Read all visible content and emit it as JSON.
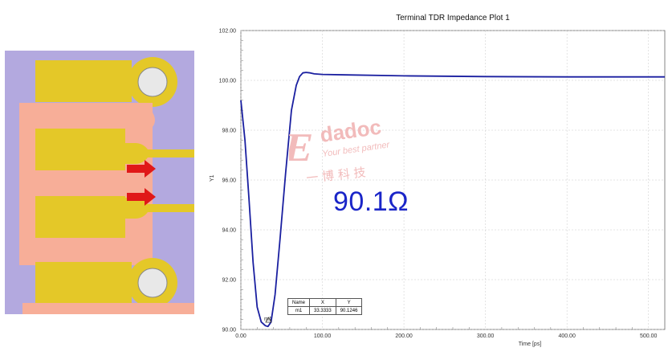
{
  "watermark": {
    "brand": "Edadoc",
    "slogan": "Your best partner",
    "chinese": "一 博 科 技"
  },
  "annotation": "90.1Ω",
  "marker": {
    "headers": [
      "Name",
      "X",
      "Y"
    ],
    "row": [
      "m1",
      "33.3333",
      "90.1246"
    ]
  },
  "colors": {
    "series": "#1a1fa0",
    "layout_background": "#b3a9df",
    "plane": "#f7ae98",
    "pad": "#e4c828",
    "arrow": "#e01818"
  },
  "chart_data": {
    "type": "line",
    "title": "Terminal TDR Impedance Plot 1",
    "xlabel": "Time [ps]",
    "ylabel": "Y1",
    "xlim": [
      0,
      520
    ],
    "ylim": [
      90,
      102
    ],
    "xticks": [
      "0.00",
      "100.00",
      "200.00",
      "300.00",
      "400.00",
      "500.00"
    ],
    "yticks": [
      "90.00",
      "92.00",
      "94.00",
      "96.00",
      "98.00",
      "100.00",
      "102.00"
    ],
    "grid": true,
    "series": [
      {
        "x": [
          0,
          5,
          10,
          15,
          20,
          25,
          30,
          33.33,
          37,
          42,
          48,
          55,
          62,
          68,
          72,
          76,
          80,
          85,
          90,
          100,
          130,
          200,
          300,
          400,
          520
        ],
        "y": [
          99.2,
          97.6,
          95.2,
          92.7,
          90.9,
          90.3,
          90.15,
          90.12,
          90.3,
          91.4,
          93.6,
          96.3,
          98.8,
          99.8,
          100.15,
          100.3,
          100.32,
          100.3,
          100.26,
          100.24,
          100.22,
          100.18,
          100.15,
          100.14,
          100.14
        ]
      }
    ]
  }
}
